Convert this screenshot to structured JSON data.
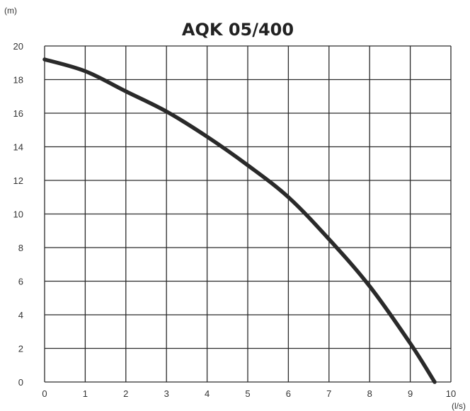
{
  "chart_data": {
    "type": "line",
    "title": "AQK 05/400",
    "ylabel": "(m)",
    "xlabel": "(l/s)",
    "xlim": [
      0,
      10
    ],
    "ylim": [
      0,
      20
    ],
    "x_ticks": [
      "0",
      "1",
      "2",
      "3",
      "4",
      "5",
      "6",
      "7",
      "8",
      "9",
      "10"
    ],
    "y_ticks": [
      "0",
      "2",
      "4",
      "6",
      "8",
      "10",
      "12",
      "14",
      "16",
      "18",
      "20"
    ],
    "grid": true,
    "series": [
      {
        "x": [
          0,
          1,
          2,
          3,
          4,
          5,
          6,
          7,
          8,
          9,
          9.6
        ],
        "y": [
          19.2,
          18.5,
          17.3,
          16.1,
          14.6,
          12.9,
          11.0,
          8.5,
          5.7,
          2.3,
          0
        ],
        "color": "#2a2a2a"
      }
    ]
  }
}
